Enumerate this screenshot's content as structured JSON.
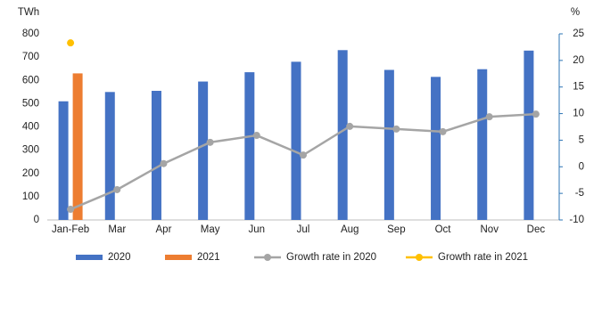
{
  "chart_data": {
    "type": "bar",
    "y_label": "TWh",
    "y2_label": "%",
    "categories": [
      "Jan-Feb",
      "Mar",
      "Apr",
      "May",
      "Jun",
      "Jul",
      "Aug",
      "Sep",
      "Oct",
      "Nov",
      "Dec"
    ],
    "series": [
      {
        "name": "2020",
        "color": "#4472c4",
        "values": [
          510,
          550,
          555,
          595,
          635,
          680,
          730,
          645,
          615,
          648,
          728
        ]
      },
      {
        "name": "2021",
        "color": "#ed7d31",
        "values": [
          630,
          null,
          null,
          null,
          null,
          null,
          null,
          null,
          null,
          null,
          null
        ]
      },
      {
        "name": "Growth rate in 2020",
        "color": "#a5a5a5",
        "axis": "y2",
        "values": [
          -8.0,
          -4.3,
          0.6,
          4.6,
          5.9,
          2.2,
          7.6,
          7.1,
          6.6,
          9.4,
          9.9
        ]
      },
      {
        "name": "Growth rate in 2021",
        "color": "#ffc000",
        "axis": "y2",
        "values": [
          23.3,
          null,
          null,
          null,
          null,
          null,
          null,
          null,
          null,
          null,
          null
        ]
      }
    ],
    "ylim": [
      0,
      800
    ],
    "yticks": [
      0,
      100,
      200,
      300,
      400,
      500,
      600,
      700,
      800
    ],
    "y2lim": [
      -10,
      25
    ],
    "y2ticks": [
      -10,
      -5,
      0,
      5,
      10,
      15,
      20,
      25
    ],
    "grid": false
  }
}
